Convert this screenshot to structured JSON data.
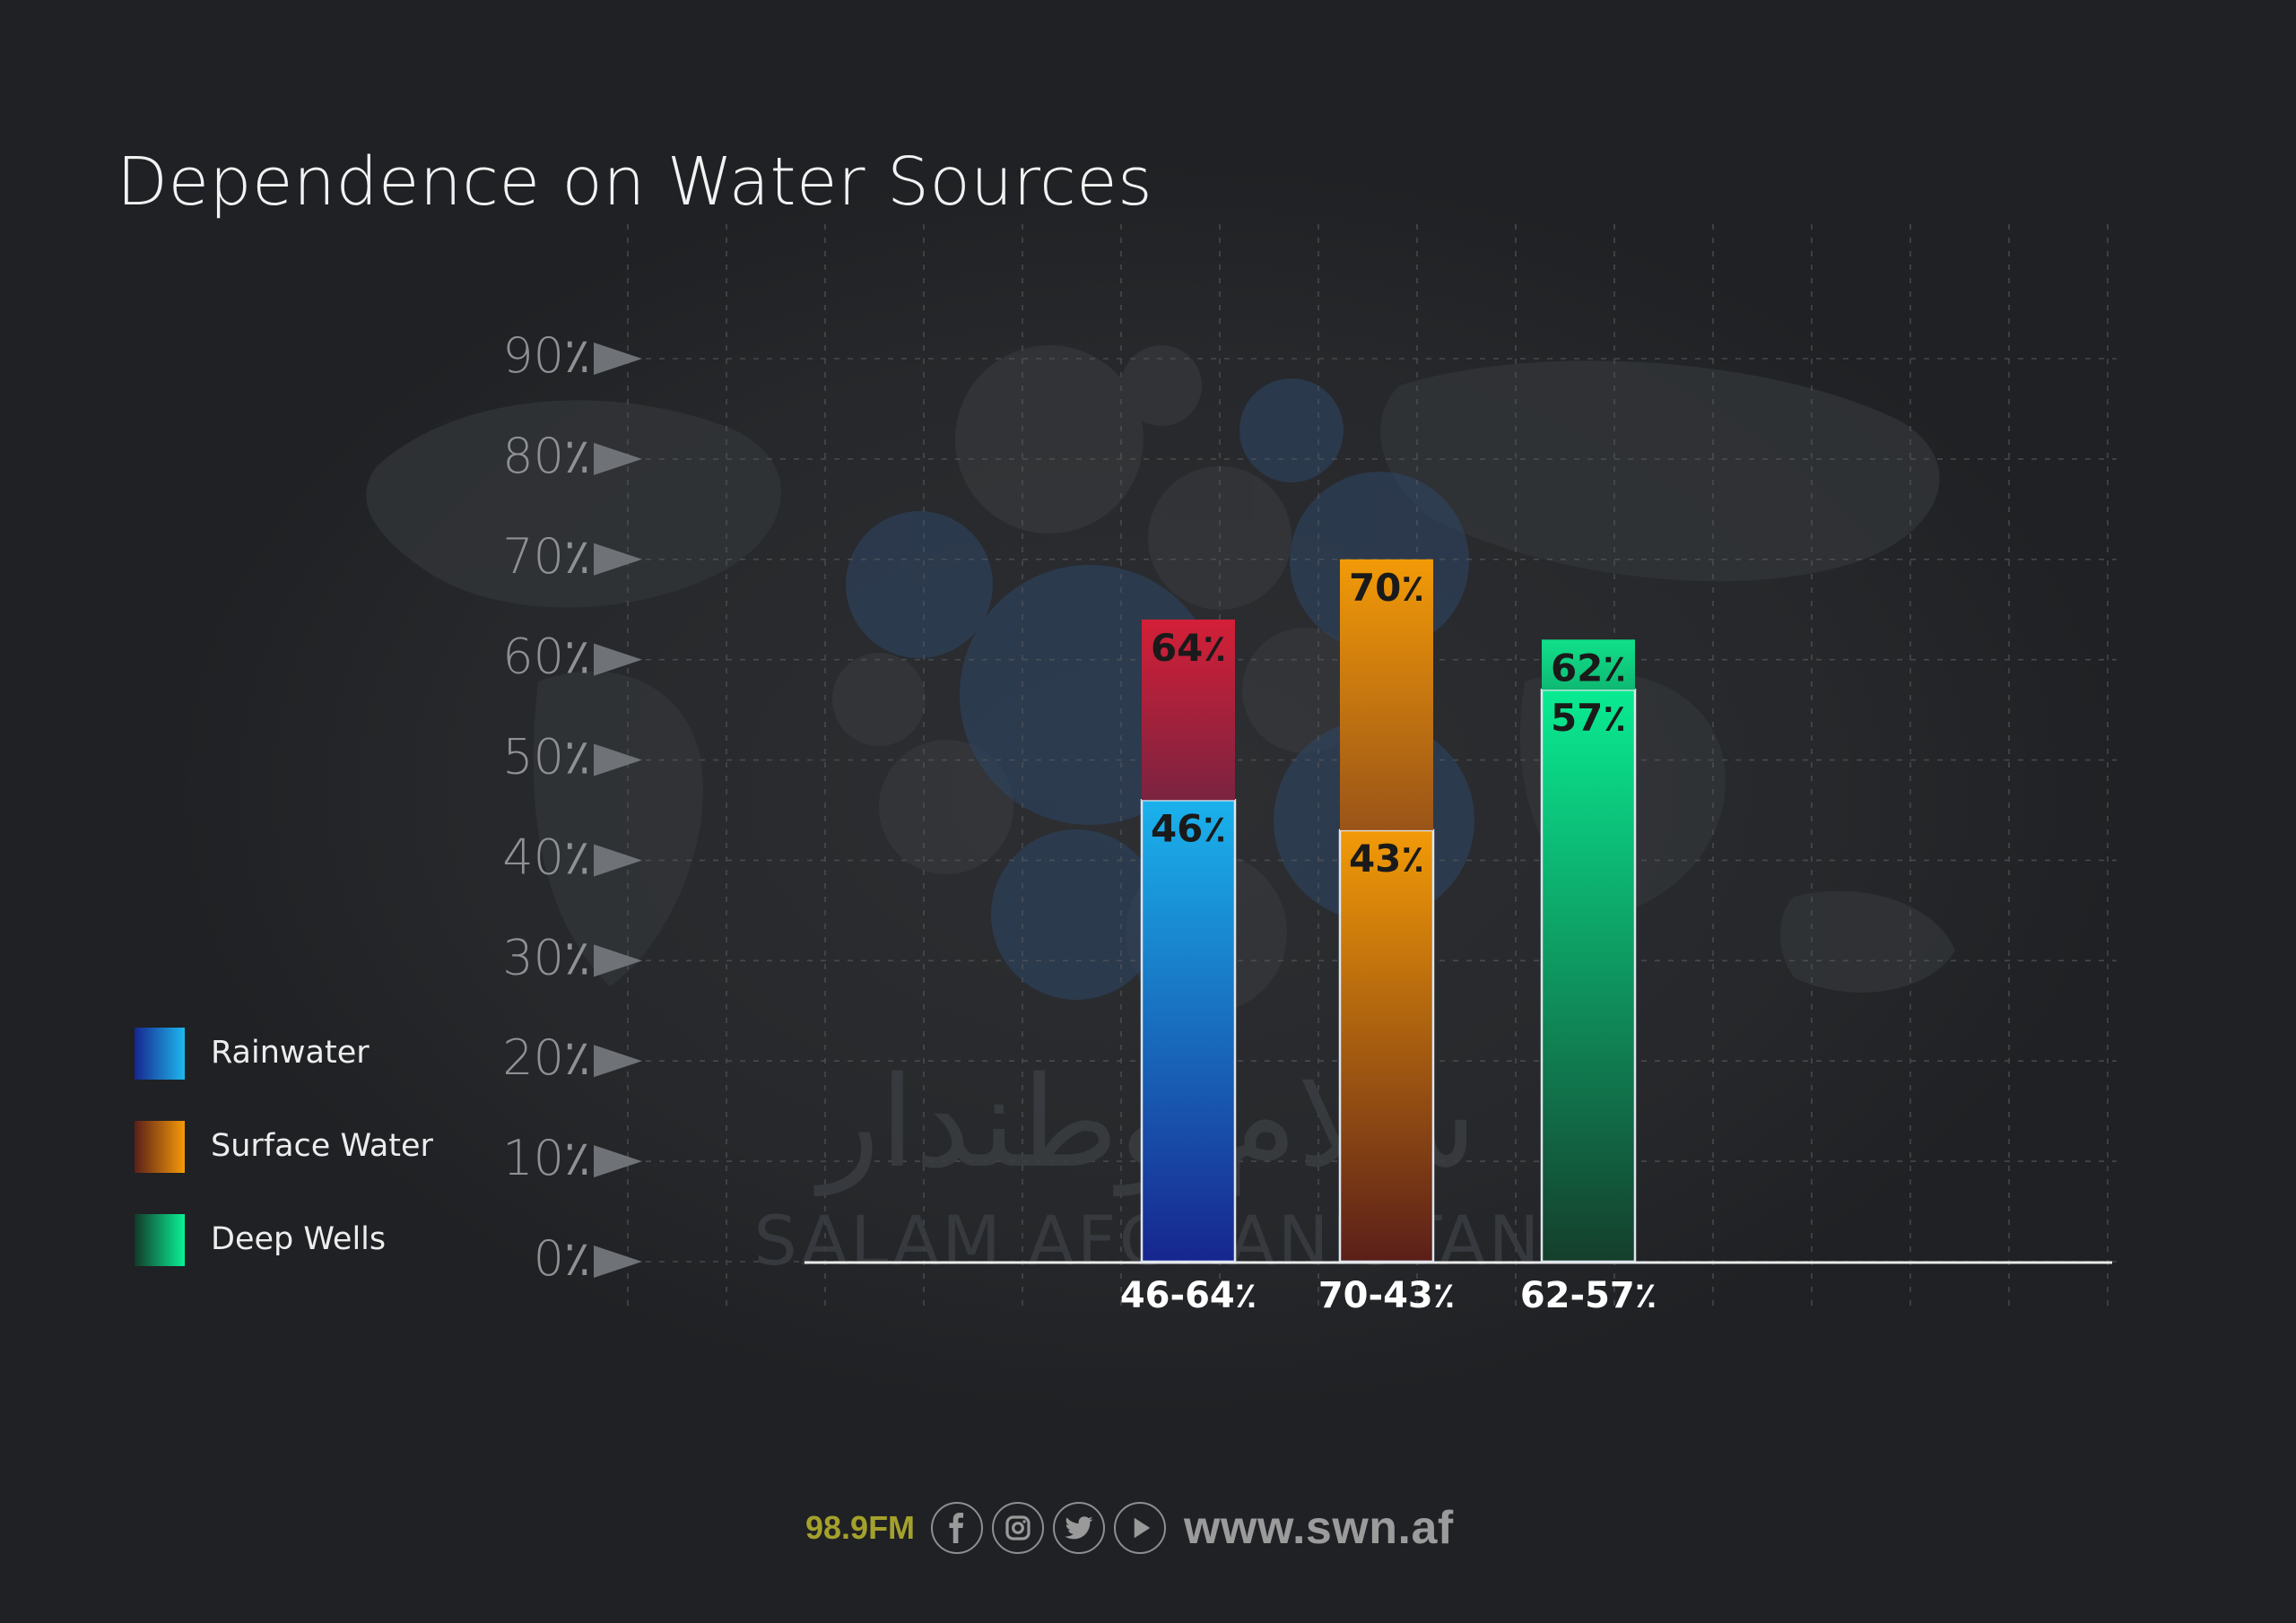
{
  "chart_data": {
    "type": "bar",
    "title": "Dependence on Water Sources",
    "y_ticks": [
      "0٪",
      "10٪",
      "20٪",
      "30٪",
      "40٪",
      "50٪",
      "60٪",
      "70٪",
      "80٪",
      "90٪"
    ],
    "ylim": [
      0,
      90
    ],
    "grid": true,
    "legend_placement": "left",
    "categories": [
      "46-64٪",
      "70-43٪",
      "62-57٪"
    ],
    "series": [
      {
        "name": "Rainwater",
        "color": "#1ab2ec",
        "bar": 0,
        "segments": [
          {
            "from": 0,
            "to": 46,
            "label": "46٪"
          },
          {
            "from": 46,
            "to": 64,
            "label": "64٪"
          }
        ]
      },
      {
        "name": "Surface Water",
        "color": "#f29a07",
        "bar": 1,
        "segments": [
          {
            "from": 0,
            "to": 43,
            "label": "43٪"
          },
          {
            "from": 43,
            "to": 70,
            "label": "70٪"
          }
        ]
      },
      {
        "name": "Deep Wells",
        "color": "#09eb92",
        "bar": 2,
        "segments": [
          {
            "from": 0,
            "to": 57,
            "label": "57٪"
          },
          {
            "from": 57,
            "to": 62,
            "label": "62٪"
          }
        ]
      }
    ]
  },
  "legend": [
    {
      "label": "Rainwater",
      "color_top": "#1eb8ee",
      "color_bottom": "#17268f"
    },
    {
      "label": "Surface Water",
      "color_top": "#f59a08",
      "color_bottom": "#5a1f19"
    },
    {
      "label": "Deep Wells",
      "color_top": "#0af297",
      "color_bottom": "#133a2a"
    }
  ],
  "watermark": {
    "arabic": "سلام وطندار",
    "latin": "SALAM AFGHANISTAN"
  },
  "footer": {
    "frequency": "98.9FM",
    "icons": [
      "facebook-icon",
      "instagram-icon",
      "twitter-icon",
      "play-icon"
    ],
    "url": "www.swn.af"
  }
}
